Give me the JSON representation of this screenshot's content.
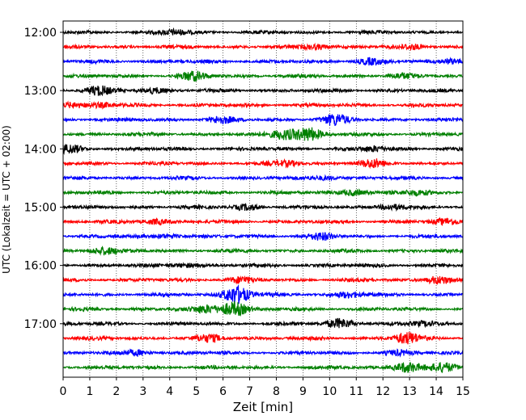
{
  "chart_data": {
    "type": "line",
    "title": "",
    "xlabel": "Zeit  [min]",
    "ylabel": "UTC (Lokalzeit = UTC + 02:00)",
    "xlim": [
      0,
      15
    ],
    "x_ticks": [
      "0",
      "1",
      "2",
      "3",
      "4",
      "5",
      "6",
      "7",
      "8",
      "9",
      "10",
      "11",
      "12",
      "13",
      "14",
      "15"
    ],
    "y_ticks": [
      "12:00",
      "13:00",
      "14:00",
      "15:00",
      "16:00",
      "17:00"
    ],
    "grid": "vertical dotted",
    "trace_colors": [
      "#000000",
      "#ff0000",
      "#0000ff",
      "#008000"
    ],
    "traces": [
      {
        "start": "12:00",
        "color": "#000000",
        "events": [
          [
            4.2,
            0.5
          ]
        ]
      },
      {
        "start": "12:15",
        "color": "#ff0000",
        "events": [
          [
            9.5,
            0.5
          ],
          [
            13.2,
            0.4
          ]
        ]
      },
      {
        "start": "12:30",
        "color": "#0000ff",
        "events": [
          [
            11.5,
            0.6
          ],
          [
            14.6,
            0.5
          ]
        ]
      },
      {
        "start": "12:45",
        "color": "#008000",
        "events": [
          [
            4.9,
            0.8
          ],
          [
            12.7,
            0.4
          ]
        ]
      },
      {
        "start": "13:00",
        "color": "#000000",
        "events": [
          [
            1.3,
            0.8
          ],
          [
            3.4,
            0.5
          ]
        ]
      },
      {
        "start": "13:15",
        "color": "#ff0000",
        "events": [
          [
            0.3,
            0.5
          ],
          [
            1.5,
            0.4
          ]
        ]
      },
      {
        "start": "13:30",
        "color": "#0000ff",
        "events": [
          [
            5.9,
            0.6
          ],
          [
            10.2,
            1.0
          ]
        ]
      },
      {
        "start": "13:45",
        "color": "#008000",
        "events": [
          [
            8.3,
            1.0
          ],
          [
            9.2,
            1.3
          ]
        ]
      },
      {
        "start": "14:00",
        "color": "#000000",
        "events": [
          [
            0.3,
            0.7
          ],
          [
            11.7,
            0.5
          ]
        ]
      },
      {
        "start": "14:15",
        "color": "#ff0000",
        "events": [
          [
            8.4,
            0.5
          ],
          [
            11.6,
            0.7
          ]
        ]
      },
      {
        "start": "14:30",
        "color": "#0000ff",
        "events": [
          [
            9.8,
            0.4
          ]
        ]
      },
      {
        "start": "14:45",
        "color": "#008000",
        "events": [
          [
            10.9,
            0.6
          ],
          [
            13.3,
            0.5
          ]
        ]
      },
      {
        "start": "15:00",
        "color": "#000000",
        "events": [
          [
            6.9,
            0.5
          ],
          [
            12.3,
            0.5
          ]
        ]
      },
      {
        "start": "15:15",
        "color": "#ff0000",
        "events": [
          [
            3.5,
            0.5
          ],
          [
            14.4,
            0.5
          ]
        ]
      },
      {
        "start": "15:30",
        "color": "#0000ff",
        "events": [
          [
            9.7,
            0.6
          ],
          [
            3.9,
            0.4
          ]
        ]
      },
      {
        "start": "15:45",
        "color": "#008000",
        "events": [
          [
            1.5,
            0.7
          ]
        ]
      },
      {
        "start": "16:00",
        "color": "#000000",
        "events": [
          [
            4.6,
            0.4
          ]
        ]
      },
      {
        "start": "16:15",
        "color": "#ff0000",
        "events": [
          [
            14.1,
            0.8
          ],
          [
            6.7,
            0.5
          ]
        ]
      },
      {
        "start": "16:30",
        "color": "#0000ff",
        "events": [
          [
            6.5,
            1.8
          ],
          [
            10.7,
            0.6
          ]
        ]
      },
      {
        "start": "16:45",
        "color": "#008000",
        "events": [
          [
            6.4,
            1.4
          ],
          [
            5.4,
            0.7
          ]
        ]
      },
      {
        "start": "17:00",
        "color": "#000000",
        "events": [
          [
            10.4,
            0.9
          ],
          [
            13.6,
            0.5
          ]
        ]
      },
      {
        "start": "17:15",
        "color": "#ff0000",
        "events": [
          [
            12.9,
            1.1
          ],
          [
            5.5,
            0.6
          ]
        ]
      },
      {
        "start": "17:30",
        "color": "#0000ff",
        "events": [
          [
            2.8,
            0.5
          ],
          [
            12.5,
            0.4
          ]
        ]
      },
      {
        "start": "17:45",
        "color": "#008000",
        "events": [
          [
            12.9,
            1.0
          ],
          [
            14.3,
            0.8
          ]
        ]
      }
    ]
  }
}
